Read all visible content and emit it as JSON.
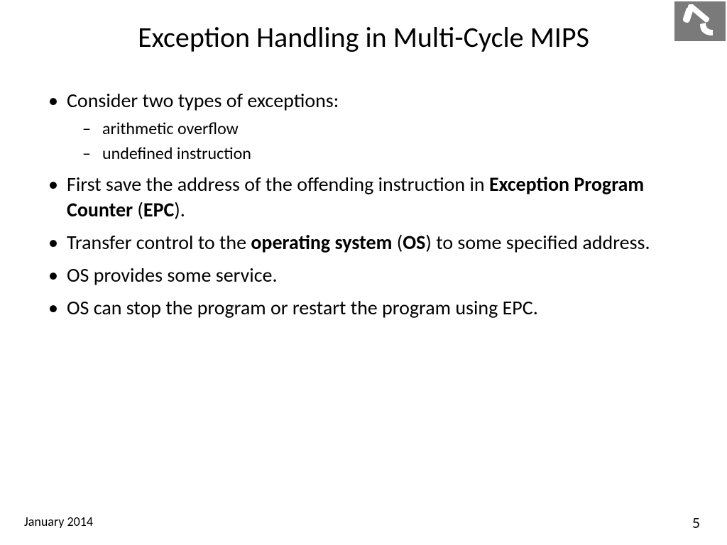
{
  "slide": {
    "title": "Exception Handling in Multi-Cycle MIPS",
    "bullets": [
      {
        "text": "Consider two types of exceptions:",
        "sub": [
          "arithmetic overflow",
          "undefined instruction"
        ]
      },
      {
        "segments": [
          {
            "t": "First save the address of the offending instruction in ",
            "b": false
          },
          {
            "t": "Exception Program Counter",
            "b": true
          },
          {
            "t": " (",
            "b": false
          },
          {
            "t": "EPC",
            "b": true
          },
          {
            "t": ").",
            "b": false
          }
        ]
      },
      {
        "segments": [
          {
            "t": "Transfer control to the ",
            "b": false
          },
          {
            "t": "operating system",
            "b": true
          },
          {
            "t": " (",
            "b": false
          },
          {
            "t": "OS",
            "b": true
          },
          {
            "t": ") to some specified address.",
            "b": false
          }
        ]
      },
      {
        "text": "OS provides some service."
      },
      {
        "text": "OS can stop the program or restart the program using EPC."
      }
    ],
    "footer": {
      "date": "January  2014",
      "page": "5"
    },
    "logo": {
      "name": "aleph-logo",
      "bg": "#7a7a7a",
      "fg": "#ffffff"
    },
    "style": {
      "title_fontsize": 40,
      "bullet_fontsize": 28,
      "sub_fontsize": 24,
      "footer_date_fontsize": 18,
      "footer_page_fontsize": 22,
      "background": "#ffffff",
      "text_color": "#000000"
    }
  }
}
